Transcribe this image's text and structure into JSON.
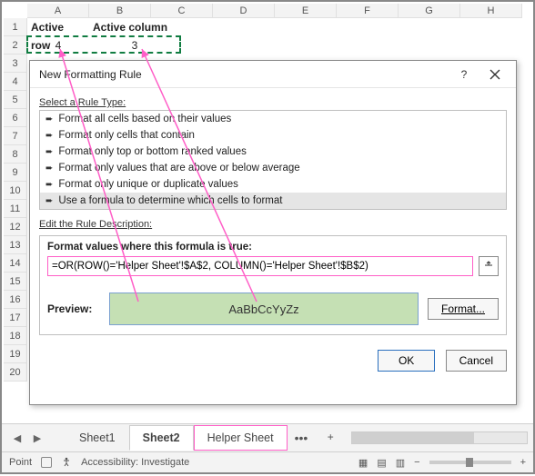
{
  "columns": [
    "A",
    "B",
    "C",
    "D",
    "E",
    "F",
    "G",
    "H"
  ],
  "row_count": 20,
  "cells": {
    "a1": "Active row",
    "b1": "Active column",
    "a2": "4",
    "b2": "3"
  },
  "dialog": {
    "title": "New Formatting Rule",
    "select_label": "Select a Rule Type:",
    "rules": [
      "Format all cells based on their values",
      "Format only cells that contain",
      "Format only top or bottom ranked values",
      "Format only values that are above or below average",
      "Format only unique or duplicate values",
      "Use a formula to determine which cells to format"
    ],
    "selected_rule_index": 5,
    "edit_label": "Edit the Rule Description:",
    "formula_label": "Format values where this formula is true:",
    "formula_value": "=OR(ROW()='Helper Sheet'!$A$2, COLUMN()='Helper Sheet'!$B$2)",
    "preview_label": "Preview:",
    "preview_text": "AaBbCcYyZz",
    "preview_bg": "#c5e0b4",
    "format_btn": "Format...",
    "ok": "OK",
    "cancel": "Cancel"
  },
  "tabs": {
    "sheet1": "Sheet1",
    "sheet2": "Sheet2",
    "helper": "Helper Sheet",
    "more": "•••",
    "active": "Sheet2"
  },
  "status": {
    "mode": "Point",
    "accessibility": "Accessibility: Investigate",
    "zoom": "100%"
  },
  "arrows": {
    "color": "#ff5ec7"
  }
}
